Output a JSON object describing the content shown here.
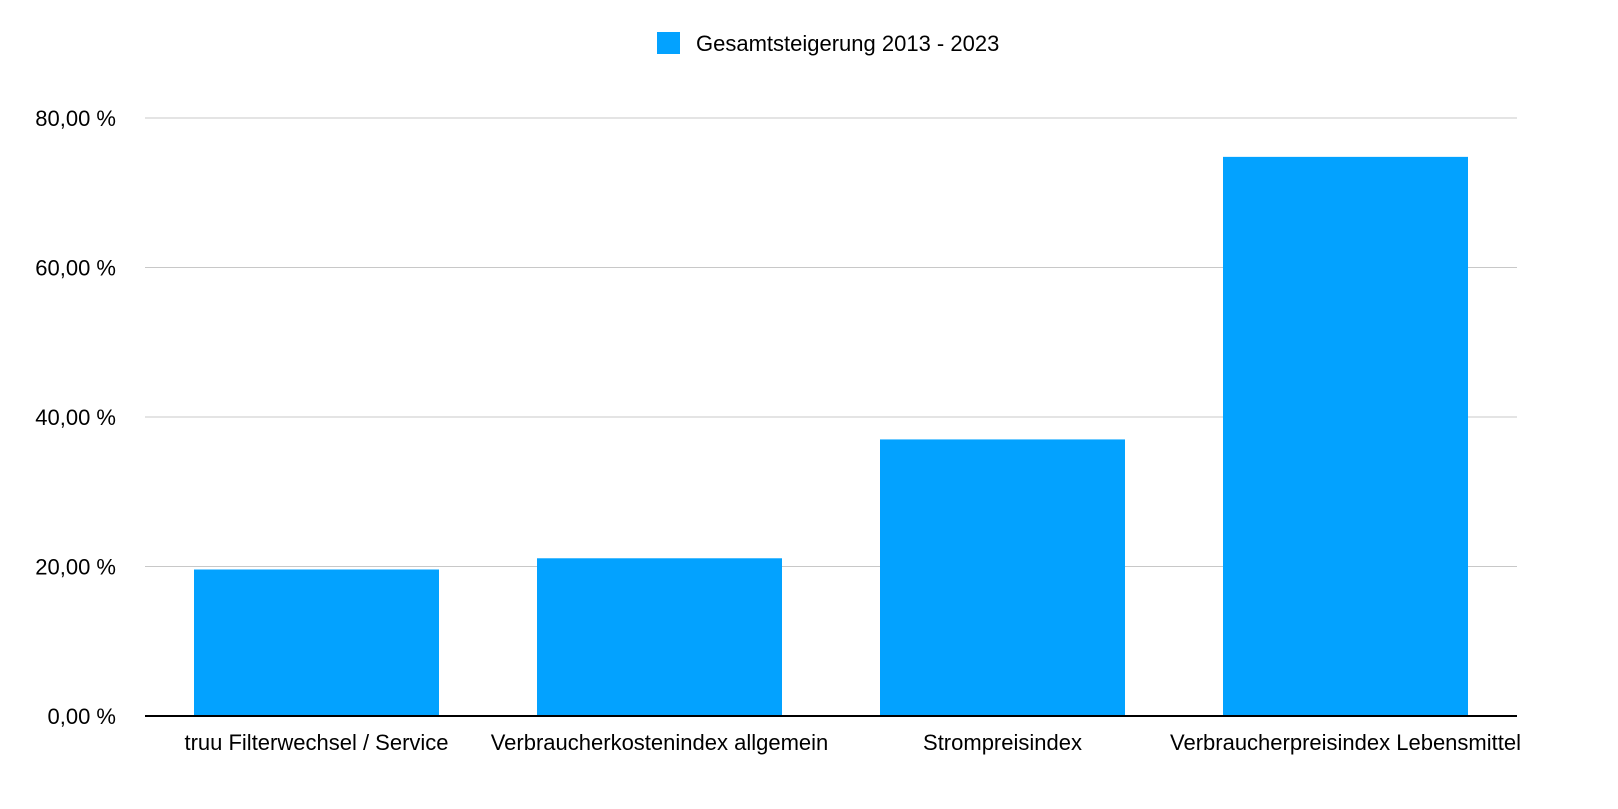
{
  "chart_data": {
    "type": "bar",
    "title": "",
    "xlabel": "",
    "ylabel": "",
    "categories": [
      "truu Filterwechsel / Service",
      "Verbraucherkostenindex allgemein",
      "Strompreisindex",
      "Verbraucherpreisindex Lebensmittel"
    ],
    "series": [
      {
        "name": "Gesamtsteigerung 2013 - 2023",
        "color": "#03a2ff",
        "values": [
          19.6,
          21.1,
          37.0,
          74.8
        ]
      }
    ],
    "ylim": [
      0,
      80
    ],
    "y_ticks": [
      0,
      20,
      40,
      60,
      80
    ],
    "y_tick_labels": [
      "0,00 %",
      "20,00 %",
      "40,00 %",
      "60,00 %",
      "80,00 %"
    ],
    "grid": true,
    "legend_position": "top-center"
  }
}
